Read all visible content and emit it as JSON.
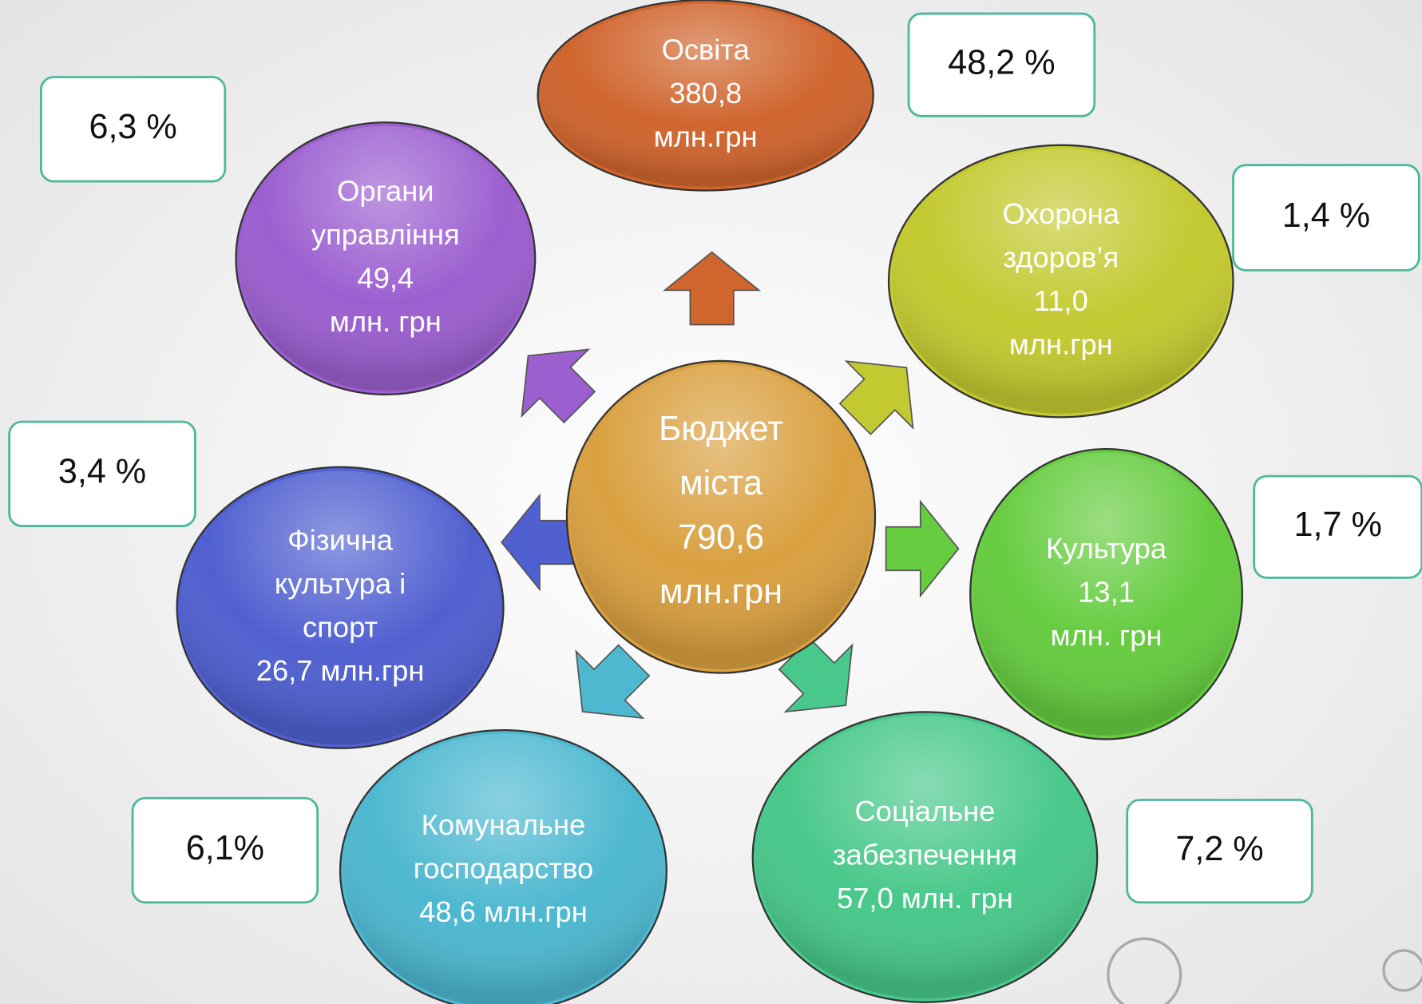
{
  "center": {
    "lines": [
      "Бюджет",
      "міста",
      "790,6",
      "млн.грн"
    ],
    "color": "#d9a040"
  },
  "nodes": [
    {
      "lines": [
        "Освіта",
        "380,8",
        "млн.грн"
      ],
      "percent": "48,2 %",
      "color": "#d0652e"
    },
    {
      "lines": [
        "Охорона",
        "здоров’я",
        "11,0",
        "млн.грн"
      ],
      "percent": "1,4 %",
      "color": "#c3c930"
    },
    {
      "lines": [
        "Культура",
        "13,1",
        "млн. грн"
      ],
      "percent": "1,7 %",
      "color": "#66cc40"
    },
    {
      "lines": [
        "Соціальне",
        "забезпечення",
        "57,0 млн. грн"
      ],
      "percent": "7,2 %",
      "color": "#48c88a"
    },
    {
      "lines": [
        "Комунальне",
        "господарство",
        "48,6 млн.грн"
      ],
      "percent": "6,1%",
      "color": "#4db8d0"
    },
    {
      "lines": [
        "Фізична",
        "культура і",
        "спорт",
        "26,7 млн.грн"
      ],
      "percent": "3,4 %",
      "color": "#5060d0"
    },
    {
      "lines": [
        "Органи",
        "управління",
        "49,4",
        "млн. грн"
      ],
      "percent": "6,3 %",
      "color": "#9c5fd0"
    }
  ]
}
